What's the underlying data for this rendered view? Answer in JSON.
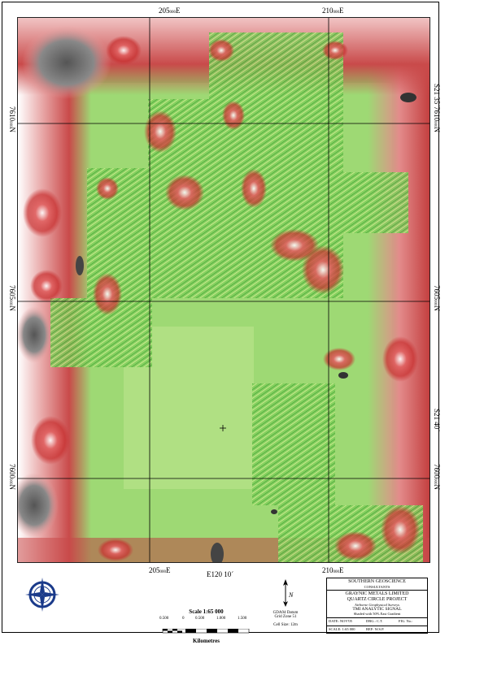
{
  "grid_labels": {
    "top": [
      "205000E",
      "210000E"
    ],
    "bottom": [
      "205000E",
      "210000E"
    ],
    "left": [
      "7610000N",
      "7605000N"
    ],
    "right": [
      "7610000N",
      "7605000N",
      "7600000N"
    ],
    "lat_right": [
      "S21 35´",
      "S21 40´"
    ],
    "lon_bottom": "E120 10´"
  },
  "grid_label_parts": {
    "e205_main": "205",
    "e205_sub": "000",
    "e_suffix": "E",
    "e210_main": "210",
    "e210_sub": "000",
    "n7610_main": "7610",
    "n7610_sub": "000",
    "n_suffix": "N",
    "n7605_main": "7605",
    "n7605_sub": "000",
    "n7600_main": "7600",
    "n7600_sub": "000"
  },
  "scale": {
    "title": "Scale 1:65 000",
    "ticks": [
      "0.500",
      "0",
      "0.500",
      "1.000",
      "1.500"
    ],
    "units": "Kilometres"
  },
  "north": {
    "label": "N",
    "datum": "GDA94 Datum",
    "zone": "Grid Zone 51",
    "cell": "Cell Size: 12m"
  },
  "title_block": {
    "company": "SOUTHERN GEOSCIENCE",
    "company_sub": "CONSULTANTS",
    "client": "GRAYNIC METALS LIMITED",
    "project": "QUARTZ CIRCLE PROJECT",
    "survey": "Airborne Geophysical Surveys",
    "product": "TMI ANALYTIC SIGNAL",
    "shading": "Shaded with 50% East Gradient",
    "date_label": "DATE:",
    "date_value": "NOV'05",
    "drawn_label": "DRG.:",
    "drawn_value": "C.T.",
    "fig_label": "FIG. No.:",
    "scale_label": "SCALE:",
    "scale_value": "1:65 000",
    "ref_label": "REF:",
    "ref_value": "W.S.P."
  },
  "colors": {
    "low": "#4fb94a",
    "mid": "#c8e88c",
    "high": "#d73a3a",
    "peak": "#ffffff",
    "shadow": "#555555"
  }
}
